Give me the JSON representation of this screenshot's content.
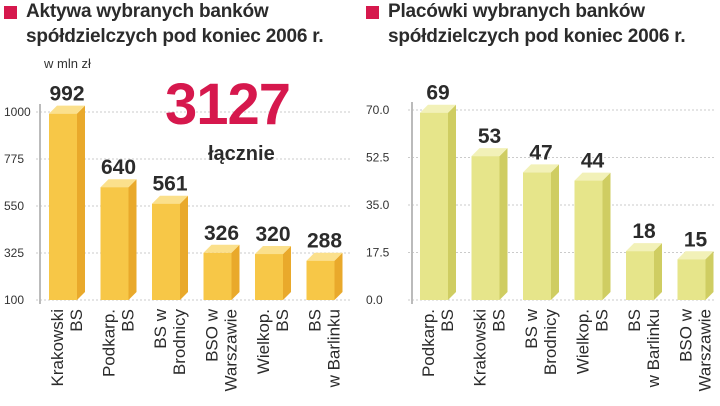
{
  "colors": {
    "accent": "#d6184d",
    "left_bar_front": "#f7c747",
    "left_bar_side": "#e9a92b",
    "left_bar_top": "#fbe08c",
    "right_bar_front": "#e6e58a",
    "right_bar_side": "#cfcd62",
    "right_bar_top": "#f2f1b8"
  },
  "left": {
    "title_line1": "Aktywa wybranych banków",
    "title_line2": "spółdzielczych pod koniec 2006 r.",
    "unit": "w mln zł",
    "total_value": "3127",
    "total_label": "łącznie"
  },
  "right": {
    "title_line1": "Placówki wybranych banków",
    "title_line2": "spółdzielczych pod koniec 2006 r."
  },
  "chart_data": [
    {
      "type": "bar",
      "title": "Aktywa wybranych banków spółdzielczych pod koniec 2006 r.",
      "ylabel": "w mln zł",
      "categories": [
        [
          "Krakowski",
          "BS"
        ],
        [
          "Podkarp.",
          "BS"
        ],
        [
          "BS w",
          "Brodnicy"
        ],
        [
          "BSO w",
          "Warszawie"
        ],
        [
          "Wielkop.",
          "BS"
        ],
        [
          "BS",
          "w Barlinku"
        ]
      ],
      "values": [
        992,
        640,
        561,
        326,
        320,
        288
      ],
      "ylim": [
        100,
        1000
      ],
      "yticks": [
        "1000",
        "775",
        "550",
        "325",
        "100"
      ],
      "ytick_values": [
        1000,
        775,
        550,
        325,
        100
      ],
      "grid": true
    },
    {
      "type": "bar",
      "title": "Placówki wybranych banków spółdzielczych pod koniec 2006 r.",
      "categories": [
        [
          "Podkarp.",
          "BS"
        ],
        [
          "Krakowski",
          "BS"
        ],
        [
          "BS w",
          "Brodnicy"
        ],
        [
          "Wielkop.",
          "BS"
        ],
        [
          "BS",
          "w Barlinku"
        ],
        [
          "BSO w",
          "Warszawie"
        ]
      ],
      "values": [
        69,
        53,
        47,
        44,
        18,
        15
      ],
      "ylim": [
        0,
        70
      ],
      "yticks": [
        "70.0",
        "52.5",
        "35.0",
        "17.5",
        "0.0"
      ],
      "ytick_values": [
        70,
        52.5,
        35,
        17.5,
        0
      ],
      "grid": true
    }
  ]
}
